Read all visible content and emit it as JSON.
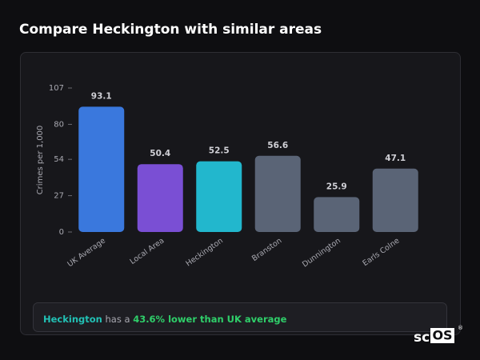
{
  "chart_data": {
    "type": "bar",
    "title": "Compare Heckington with similar areas",
    "y_label": "Crimes per 1,000",
    "categories": [
      "UK Average",
      "Local Area",
      "Heckington",
      "Branston",
      "Dunnington",
      "Earls Colne"
    ],
    "values": [
      93.1,
      50.4,
      52.5,
      56.6,
      25.9,
      47.1
    ],
    "colors": [
      "#3a78dd",
      "#7a4fd4",
      "#22b7cd",
      "#5a6476",
      "#5a6476",
      "#5a6476"
    ],
    "ylim": [
      0,
      107
    ],
    "yticks": [
      0,
      27,
      54,
      80,
      107
    ]
  },
  "summary": {
    "area": "Heckington",
    "middle": "has a",
    "highlight": "43.6% lower than UK average"
  },
  "logo": {
    "left": "sc",
    "boxed": "OS",
    "mark": "®"
  }
}
